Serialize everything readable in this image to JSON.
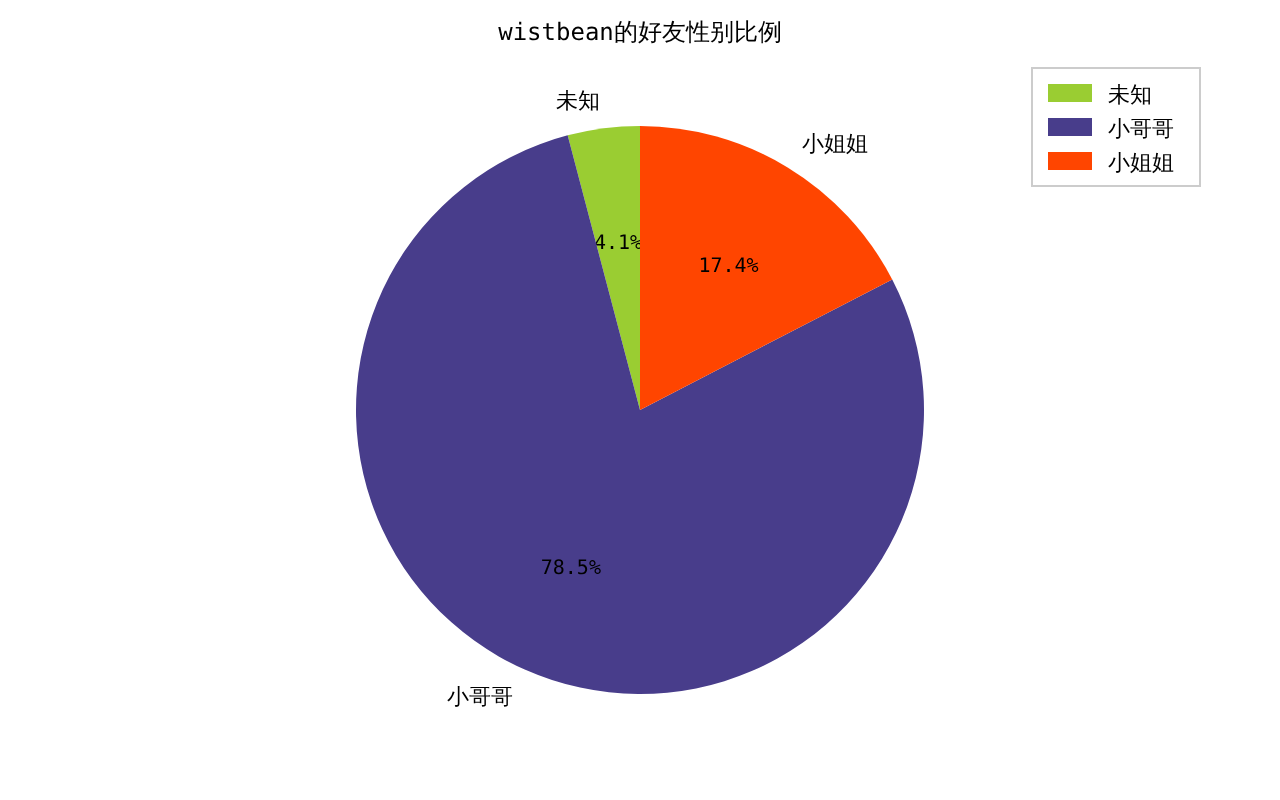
{
  "chart_data": {
    "type": "pie",
    "title": "wistbean的好友性别比例",
    "categories": [
      "未知",
      "小哥哥",
      "小姐姐"
    ],
    "values": [
      4.1,
      78.5,
      17.4
    ],
    "value_labels": [
      "4.1%",
      "78.5%",
      "17.4%"
    ],
    "colors": [
      "#9acd32",
      "#483d8b",
      "#ff4500"
    ],
    "legend": "top right"
  }
}
